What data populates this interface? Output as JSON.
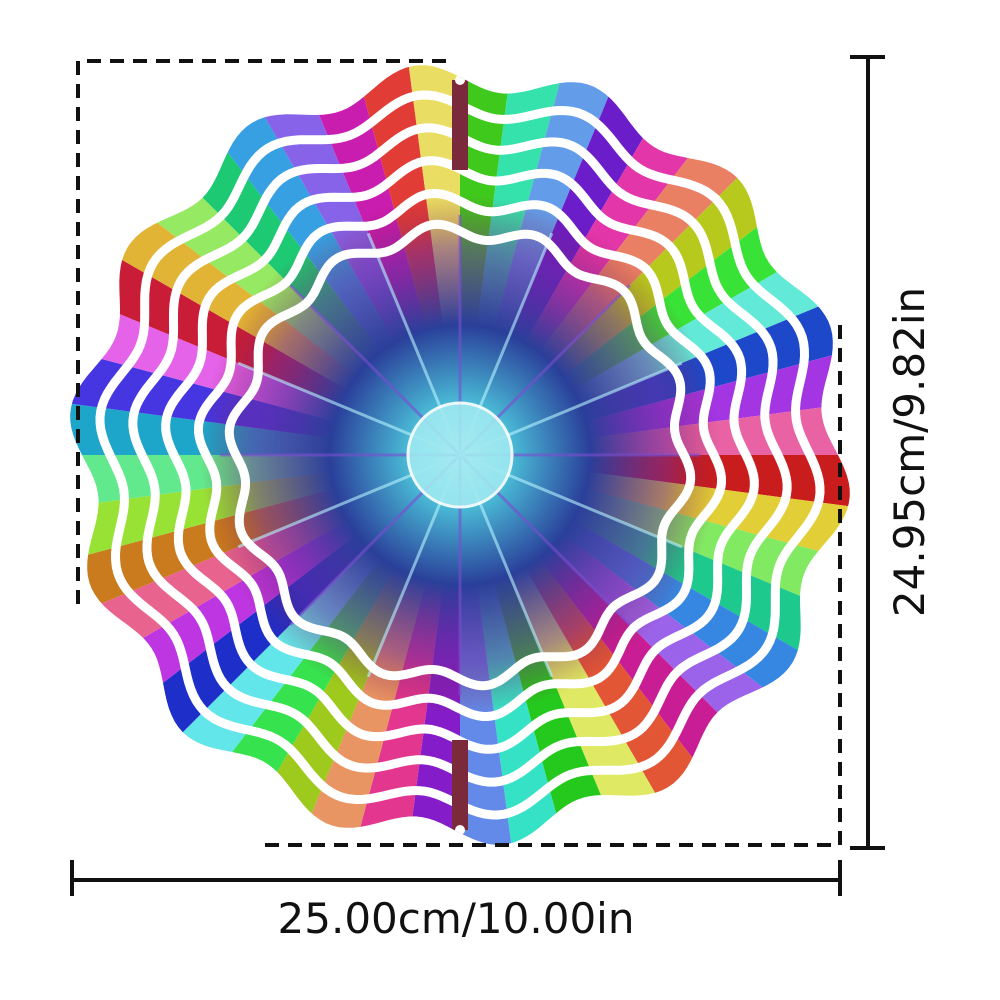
{
  "dimensions": {
    "width": "25.00cm/10.00in",
    "height": "24.95cm/9.82in"
  }
}
